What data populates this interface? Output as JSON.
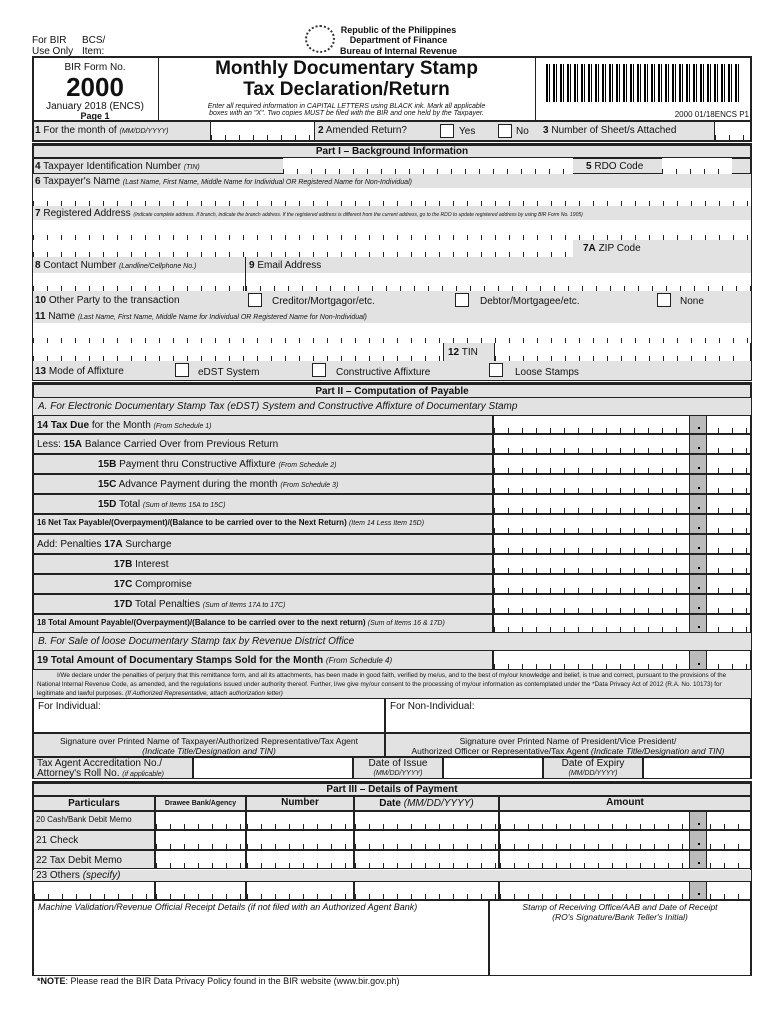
{
  "header": {
    "for_bir": "For BIR",
    "use_only": "Use Only",
    "bcs": "BCS/",
    "item": "Item:",
    "republic": "Republic of the Philippines",
    "dept": "Department of Finance",
    "bureau": "Bureau of Internal Revenue"
  },
  "form": {
    "form_no_label": "BIR Form No.",
    "form_no": "2000",
    "version": "January 2018 (ENCS)",
    "page": "Page 1",
    "title1": "Monthly Documentary Stamp",
    "title2": "Tax Declaration/Return",
    "instr1": "Enter all required information in CAPITAL LETTERS using BLACK ink. Mark all applicable",
    "instr2": "boxes with an \"X\". Two copies MUST be filed with the BIR and one held by the Taxpayer.",
    "barcode_code": "2000 01/18ENCS P1"
  },
  "row1": {
    "month": "For the month of",
    "month_fmt": "(MM/DD/YYYY)",
    "amended": "Amended Return?",
    "yes": "Yes",
    "no": "No",
    "sheets": "Number of Sheet/s Attached"
  },
  "part1": {
    "title": "Part I – Background Information",
    "tin": "Taxpayer Identification Number",
    "tin_sub": "(TIN)",
    "rdo": "RDO Code",
    "name": "Taxpayer's Name",
    "name_sub": "(Last Name, First Name, Middle Name for Individual OR Registered Name for Non-Individual)",
    "address": "Registered Address",
    "address_sub": "(Indicate complete address. If branch, indicate the branch address. If the registered address is different from the current address, go to the RDO to update registered address by using BIR Form No. 1905)",
    "zip": "ZIP Code",
    "contact": "Contact Number",
    "contact_sub": "(Landline/Cellphone No.)",
    "email": "Email Address",
    "other": "Other Party to the transaction",
    "creditor": "Creditor/Mortgagor/etc.",
    "debtor": "Debtor/Mortgagee/etc.",
    "none": "None",
    "name11": "Name",
    "name11_sub": "(Last Name, First Name, Middle Name for Individual OR Registered Name for Non-Individual)",
    "tin12": "TIN",
    "mode": "Mode of Affixture",
    "edst": "eDST System",
    "constructive": "Constructive Affixture",
    "loose": "Loose Stamps"
  },
  "part2": {
    "title": "Part II – Computation of Payable",
    "secA": "A.  For Electronic Documentary Stamp Tax (eDST) System and Constructive Affixture of Documentary Stamp",
    "items": [
      {
        "pre": "",
        "num": "14 Tax Due",
        "text": " for the Month ",
        "sub": "(From Schedule 1)"
      },
      {
        "pre": "Less: ",
        "num": "15A",
        "text": " Balance Carried Over from Previous Return",
        "sub": ""
      },
      {
        "pre": "",
        "num": "15B",
        "text": " Payment thru Constructive Affixture ",
        "sub": "(From Schedule 2)"
      },
      {
        "pre": "",
        "num": "15C",
        "text": " Advance Payment during the month ",
        "sub": "(From Schedule 3)"
      },
      {
        "pre": "",
        "num": "15D",
        "text": " Total ",
        "sub": "(Sum of Items 15A to 15C)"
      },
      {
        "pre": "",
        "num": "16 Net Tax Payable/(Overpayment)/(Balance to be carried over to the Next Return)",
        "text": " ",
        "sub": "(Item 14 Less Item 15D)"
      },
      {
        "pre": "Add: Penalties ",
        "num": "17A",
        "text": " Surcharge",
        "sub": ""
      },
      {
        "pre": "",
        "num": "17B",
        "text": " Interest",
        "sub": ""
      },
      {
        "pre": "",
        "num": "17C",
        "text": " Compromise",
        "sub": ""
      },
      {
        "pre": "",
        "num": "17D",
        "text": " Total Penalties ",
        "sub": "(Sum of Items 17A to 17C)"
      },
      {
        "pre": "",
        "num": "18 Total Amount Payable/(Overpayment)/(Balance to be carried over to the next return)",
        "text": " ",
        "sub": "(Sum of Items 16 & 17D)"
      }
    ],
    "secB": "B. For Sale of loose Documentary Stamp tax by Revenue District Office",
    "item19": "19 Total Amount of Documentary Stamps Sold for the Month",
    "item19_sub": "(From Schedule 4)"
  },
  "declaration": {
    "text": "I/We declare under the penalties of perjury that this remittance form, and all its attachments, has been made in good faith, verified by me/us, and to the best of my/our knowledge and belief, is true and correct, pursuant to the provisions of the National Internal Revenue Code, as amended, and the regulations issued under authority thereof. Further, I/we give my/our consent to the processing of my/our information as contemplated under the *Data Privacy Act of 2012 (R.A. No. 10173) for legitimate and lawful purposes.",
    "note": "(If Authorized Representative, attach authorization letter)",
    "individual": "For Individual:",
    "non_individual": "For Non-Individual:",
    "sig1": "Signature over Printed Name of Taxpayer/Authorized Representative/Tax Agent",
    "sig1_sub": "(Indicate Title/Designation and TIN)",
    "sig2": "Signature over Printed Name of President/Vice President/",
    "sig2b": "Authorized Officer or Representative/Tax Agent",
    "sig2_sub": "(Indicate Title/Designation and TIN)",
    "accr1": "Tax Agent Accreditation No./",
    "accr2": "Attorney's Roll No.",
    "accr_sub": "(if applicable)",
    "issue": "Date of Issue",
    "expiry": "Date of Expiry",
    "date_fmt": "(MM/DD/YYYY)"
  },
  "part3": {
    "title": "Part III – Details of Payment",
    "cols": [
      "Particulars",
      "Drawee Bank/Agency",
      "Number",
      "Date",
      "Amount"
    ],
    "date_fmt": "(MM/DD/YYYY)",
    "rows": [
      "20 Cash/Bank Debit Memo",
      "21 Check",
      "22 Tax Debit Memo",
      "23 Others"
    ],
    "others_sub": "(specify)",
    "machine": "Machine Validation/Revenue Official Receipt Details (if not filed with an Authorized Agent Bank)",
    "stamp": "Stamp of Receiving Office/AAB and Date of Receipt",
    "stamp_sub": "(RO's Signature/Bank Teller's Initial)"
  },
  "note": {
    "label": "*NOTE",
    "text": ": Please read the BIR Data Privacy Policy found in the BIR website (www.bir.gov.ph)"
  }
}
